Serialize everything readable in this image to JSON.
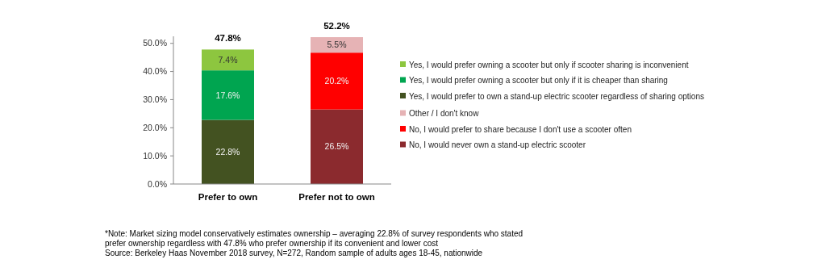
{
  "chart_data": {
    "type": "bar",
    "stacked": true,
    "categories": [
      "Prefer to own",
      "Prefer not to own"
    ],
    "series": [
      {
        "name": "Yes, I would prefer to own a stand-up electric scooter regardless of sharing options",
        "color": "#435221",
        "values": [
          22.8,
          null
        ],
        "value_labels": [
          "22.8%",
          null
        ]
      },
      {
        "name": "Yes, I would prefer owning a scooter but only if it is cheaper than sharing",
        "color": "#00a550",
        "values": [
          17.6,
          null
        ],
        "value_labels": [
          "17.6%",
          null
        ]
      },
      {
        "name": "Yes, I would prefer owning a scooter but only if scooter sharing is inconvenient",
        "color": "#8dc63f",
        "values": [
          7.4,
          null
        ],
        "value_labels": [
          "7.4%",
          null
        ]
      },
      {
        "name": "No, I would never own a stand-up electric scooter",
        "color": "#8b2a2e",
        "values": [
          null,
          26.5
        ],
        "value_labels": [
          null,
          "26.5%"
        ]
      },
      {
        "name": "No, I would prefer to share because I don't use a scooter often",
        "color": "#ff0000",
        "values": [
          null,
          20.2
        ],
        "value_labels": [
          null,
          "20.2%"
        ]
      },
      {
        "name": "Other / I don't know",
        "color": "#e6b3b5",
        "values": [
          null,
          5.5
        ],
        "value_labels": [
          null,
          "5.5%"
        ]
      }
    ],
    "totals": [
      "47.8%",
      "52.2%"
    ],
    "ylim": [
      0,
      52.5
    ],
    "yticks": [
      {
        "value": 0,
        "label": "0.0%"
      },
      {
        "value": 10,
        "label": "10.0%"
      },
      {
        "value": 20,
        "label": "20.0%"
      },
      {
        "value": 30,
        "label": "30.0%"
      },
      {
        "value": 40,
        "label": "40.0%"
      },
      {
        "value": 50,
        "label": "50.0%"
      }
    ],
    "grid": false,
    "legend": "right",
    "annotations": [
      "*Note: Market sizing model conservatively estimates ownership – averaging 22.8% of survey respondents who stated",
      "prefer ownership regardless with 47.8% who prefer ownership if its convenient and lower cost",
      "Source: Berkeley Haas November 2018 survey, N=272, Random sample of adults ages 18-45, nationwide"
    ]
  }
}
